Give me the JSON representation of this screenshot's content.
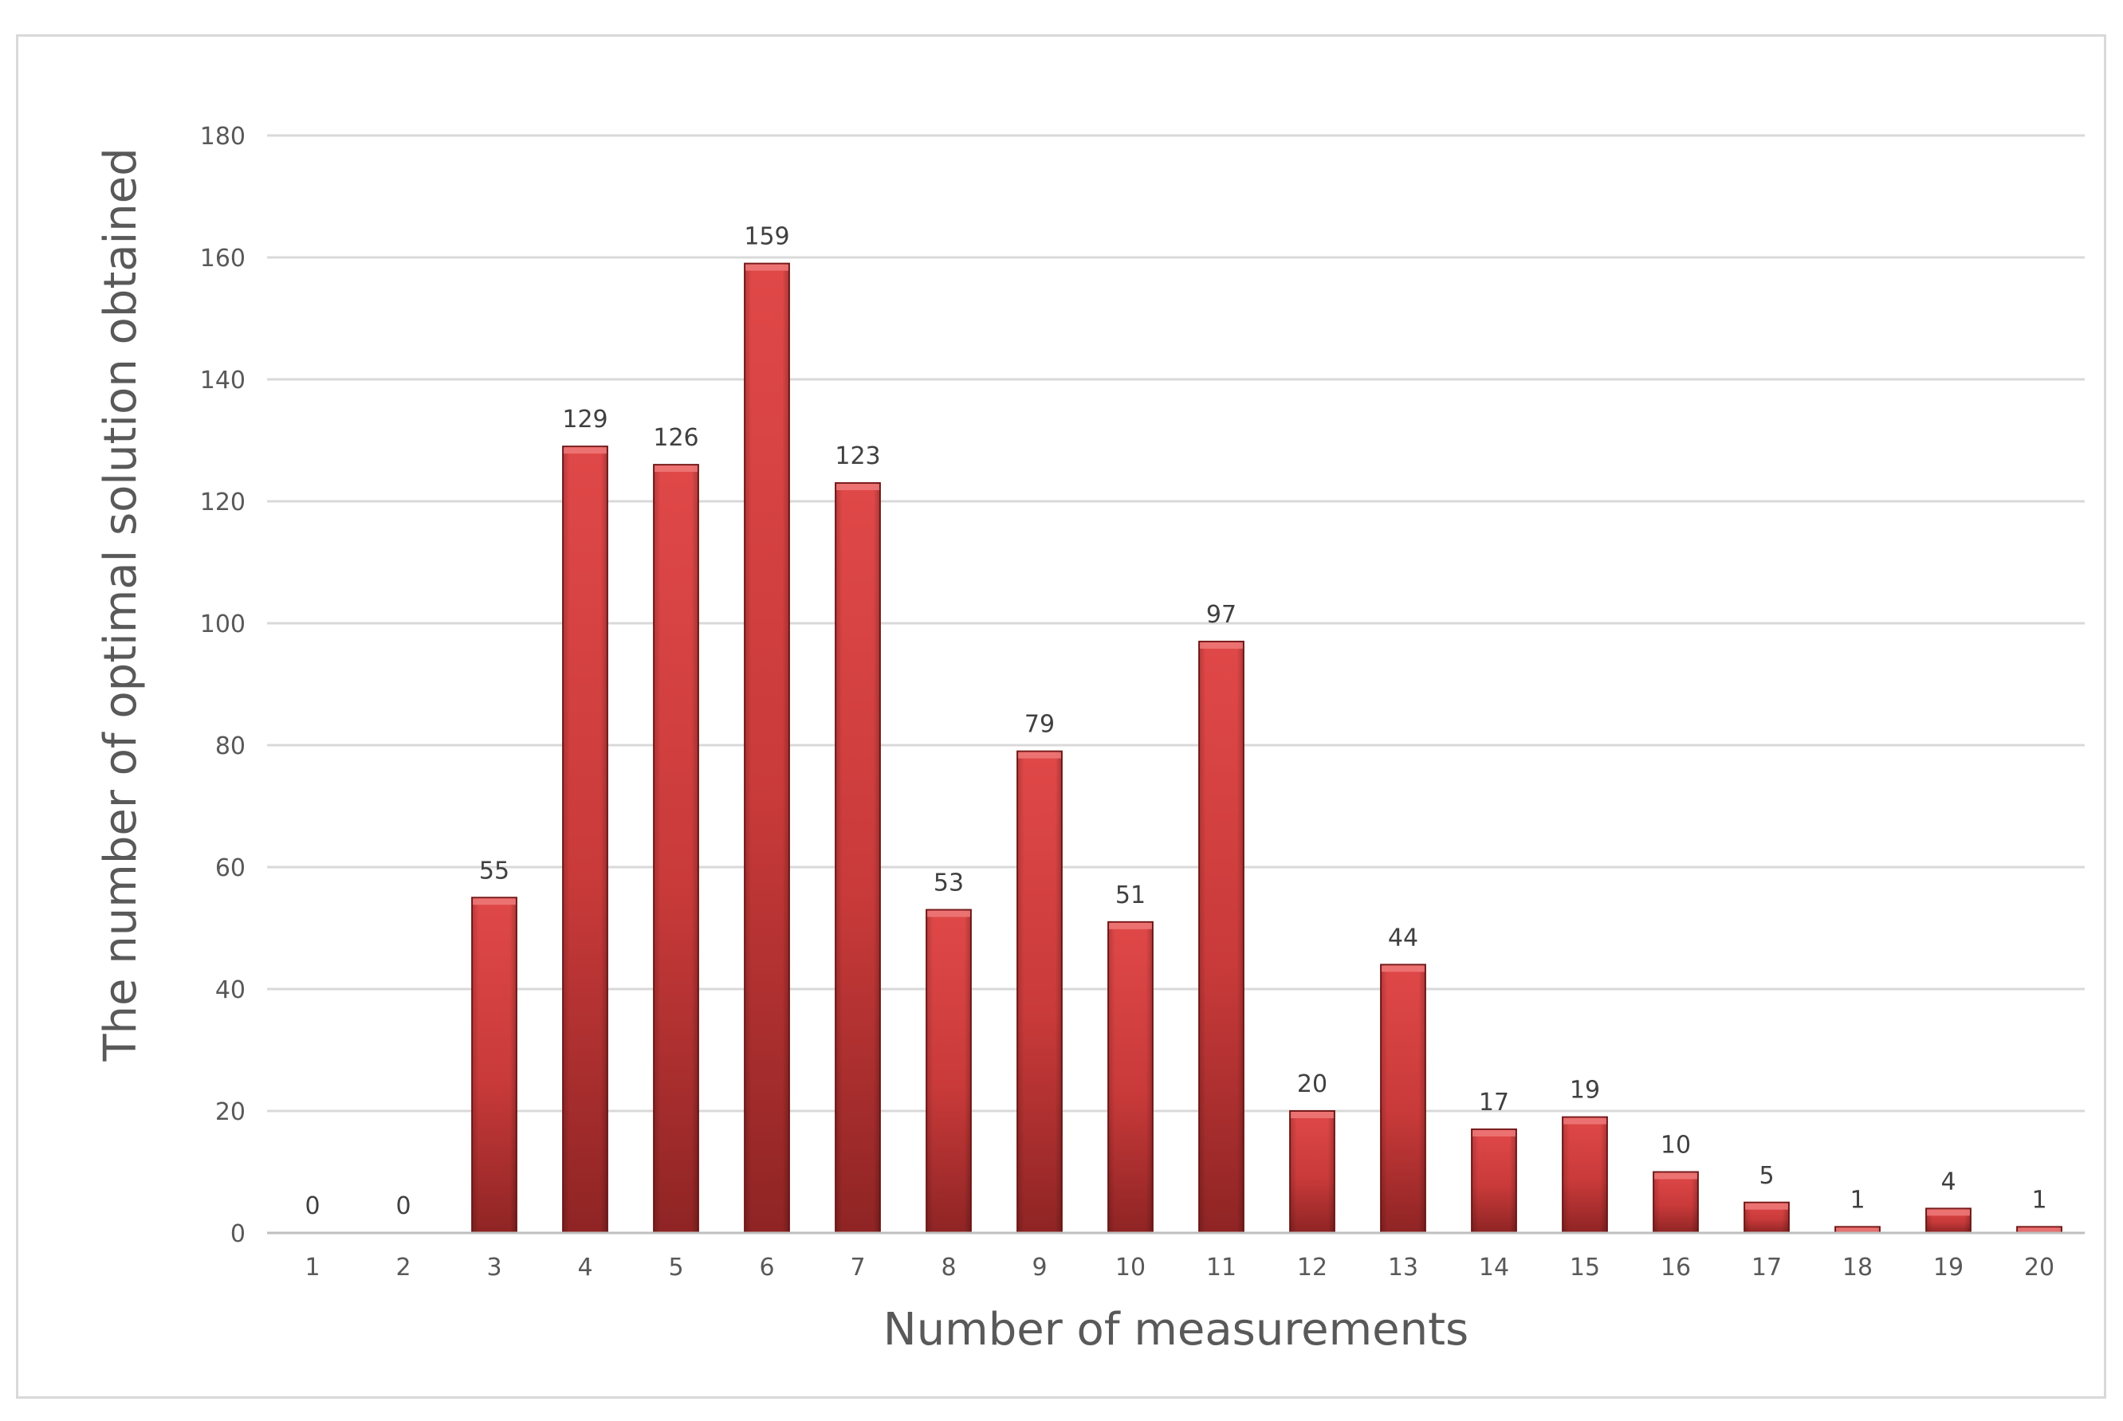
{
  "chart_data": {
    "type": "bar",
    "categories": [
      "1",
      "2",
      "3",
      "4",
      "5",
      "6",
      "7",
      "8",
      "9",
      "10",
      "11",
      "12",
      "13",
      "14",
      "15",
      "16",
      "17",
      "18",
      "19",
      "20"
    ],
    "values": [
      0,
      0,
      55,
      129,
      126,
      159,
      123,
      53,
      79,
      51,
      97,
      20,
      44,
      17,
      19,
      10,
      5,
      1,
      4,
      1
    ],
    "yticks": [
      0,
      20,
      40,
      60,
      80,
      100,
      120,
      140,
      160,
      180
    ],
    "ylim": [
      0,
      180
    ],
    "xlabel": "Number of measurements",
    "ylabel": "The number of optimal solution obtained",
    "grid": true,
    "legend": "none",
    "data_labels": true,
    "colors": {
      "bar_light": "#e04848",
      "bar_mid": "#c93a3a",
      "bar_dark": "#8f2424",
      "bar_edge": "#7a1c1c",
      "bar_top": "#ef7a7a",
      "grid": "#d9d9d9",
      "axis": "#bfbfbf"
    }
  }
}
